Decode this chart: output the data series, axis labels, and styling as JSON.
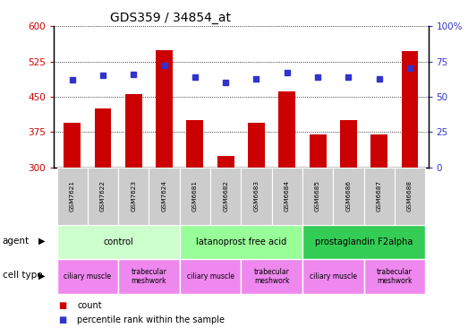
{
  "title": "GDS359 / 34854_at",
  "samples": [
    "GSM7621",
    "GSM7622",
    "GSM7623",
    "GSM7624",
    "GSM6681",
    "GSM6682",
    "GSM6683",
    "GSM6684",
    "GSM6685",
    "GSM6686",
    "GSM6687",
    "GSM6688"
  ],
  "counts": [
    395,
    425,
    455,
    550,
    400,
    325,
    395,
    462,
    370,
    400,
    370,
    548
  ],
  "percentiles": [
    62,
    65,
    66,
    72,
    64,
    60,
    63,
    67,
    64,
    64,
    63,
    70
  ],
  "y_min": 300,
  "y_max": 600,
  "y_ticks": [
    300,
    375,
    450,
    525,
    600
  ],
  "y_right_ticks": [
    0,
    25,
    50,
    75,
    100
  ],
  "bar_color": "#cc0000",
  "dot_color": "#3333cc",
  "agent_groups": [
    {
      "label": "control",
      "start": 0,
      "end": 3,
      "color": "#ccffcc"
    },
    {
      "label": "latanoprost free acid",
      "start": 4,
      "end": 7,
      "color": "#99ff99"
    },
    {
      "label": "prostaglandin F2alpha",
      "start": 8,
      "end": 11,
      "color": "#33cc55"
    }
  ],
  "cell_type_groups": [
    {
      "label": "ciliary muscle",
      "start": 0,
      "end": 1,
      "color": "#ee88ee"
    },
    {
      "label": "trabecular\nmeshwork",
      "start": 2,
      "end": 3,
      "color": "#ee88ee"
    },
    {
      "label": "ciliary muscle",
      "start": 4,
      "end": 5,
      "color": "#ee88ee"
    },
    {
      "label": "trabecular\nmeshwork",
      "start": 6,
      "end": 7,
      "color": "#ee88ee"
    },
    {
      "label": "ciliary muscle",
      "start": 8,
      "end": 9,
      "color": "#ee88ee"
    },
    {
      "label": "trabecular\nmeshwork",
      "start": 10,
      "end": 11,
      "color": "#ee88ee"
    }
  ],
  "sample_bg_color": "#cccccc",
  "ylabel_color": "#cc0000",
  "y2label_color": "#3333cc",
  "legend_count_color": "#cc0000",
  "legend_pct_color": "#3333cc"
}
